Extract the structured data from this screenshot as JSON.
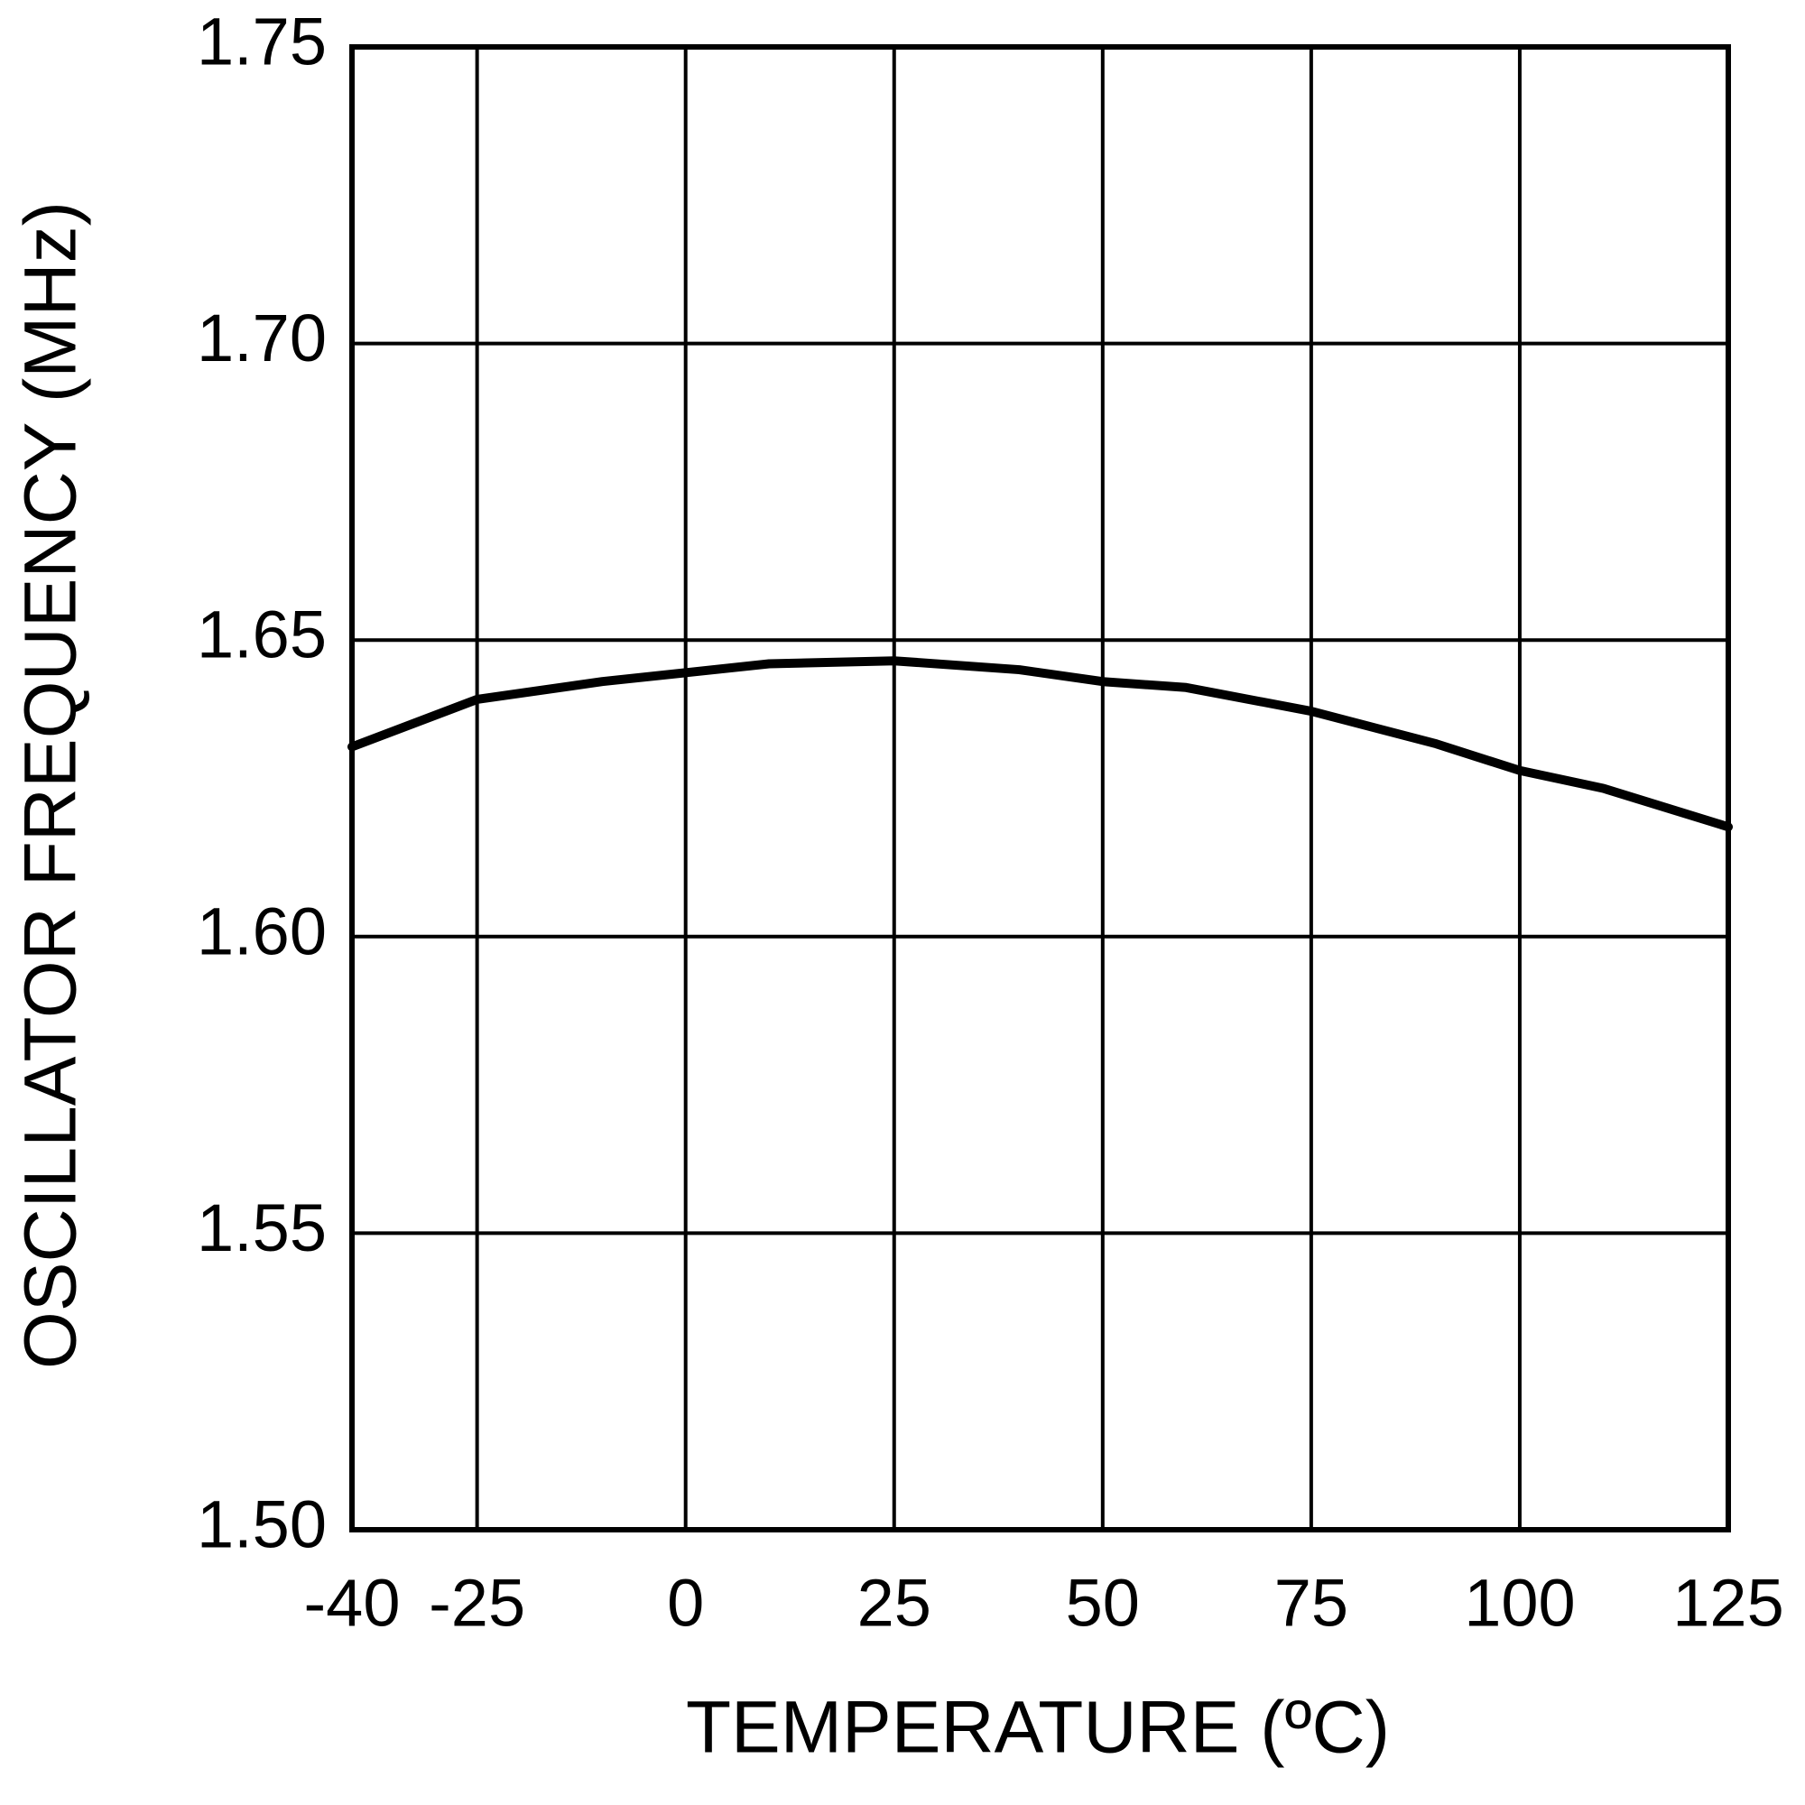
{
  "chart_data": {
    "type": "line",
    "x_label": "TEMPERATURE (ºC)",
    "y_label": "OSCILLATOR FREQUENCY (MHz)",
    "series": [
      {
        "color": "#000000",
        "x": [
          -40,
          -25,
          -10,
          0,
          10,
          25,
          40,
          50,
          60,
          75,
          90,
          100,
          110,
          125
        ],
        "values": [
          1.632,
          1.64,
          1.643,
          1.6445,
          1.646,
          1.6465,
          1.645,
          1.643,
          1.642,
          1.638,
          1.6325,
          1.628,
          1.625,
          1.6185
        ]
      }
    ],
    "xlim": [
      -40,
      125
    ],
    "xticks": [
      -40,
      -25,
      0,
      25,
      50,
      75,
      100,
      125
    ],
    "ylim": [
      1.5,
      1.75
    ],
    "yticks": [
      {
        "value": 1.5,
        "label": "1.50"
      },
      1.55,
      {
        "value": 1.6,
        "label": "1.60"
      },
      1.65,
      {
        "value": 1.7,
        "label": "1.70"
      },
      1.75
    ],
    "grid": true
  }
}
